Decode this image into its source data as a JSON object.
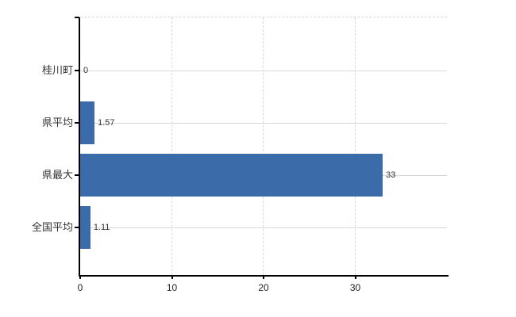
{
  "chart_data": {
    "type": "bar",
    "orientation": "horizontal",
    "title": "",
    "xlabel": "",
    "ylabel": "",
    "categories": [
      "桂川町",
      "県平均",
      "県最大",
      "全国平均"
    ],
    "values": [
      0,
      1.57,
      33,
      1.11
    ],
    "value_labels": [
      "0",
      "1.57",
      "33",
      "1.11"
    ],
    "xticks": [
      0,
      10,
      20,
      30
    ],
    "xtick_labels": [
      "0",
      "10",
      "20",
      "30"
    ],
    "xlim": [
      0,
      40
    ],
    "grid": {
      "horizontal_lines": "solid, one per category",
      "vertical_lines": "dashed, at ticks 10/20/30",
      "top_border": "dashed"
    },
    "legend": null,
    "colors": {
      "bar": "#3b6ba8",
      "grid": "#d6d9d6",
      "axis": "#000000",
      "text": "#333333"
    }
  }
}
